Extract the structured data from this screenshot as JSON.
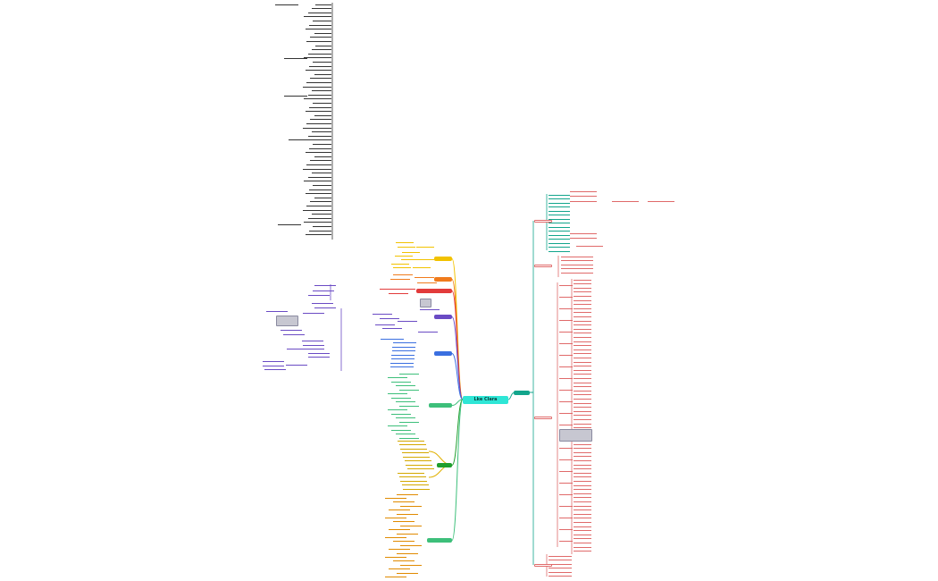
{
  "center_topic": "Lke Clara",
  "branches": [
    {
      "id": "teal",
      "label": "",
      "color": "#12a58c"
    },
    {
      "id": "yellow",
      "label": "",
      "color": "#f2c200"
    },
    {
      "id": "orange",
      "label": "",
      "color": "#f07b1c"
    },
    {
      "id": "red",
      "label": "",
      "color": "#e23b3b"
    },
    {
      "id": "purple",
      "label": "",
      "color": "#6a4bc4"
    },
    {
      "id": "blue",
      "label": "",
      "color": "#3a6fe0"
    },
    {
      "id": "lightgreen",
      "label": "",
      "color": "#6cc46a"
    },
    {
      "id": "green",
      "label": "",
      "color": "#1f9e2c"
    },
    {
      "id": "olive",
      "label": "",
      "color": "#e0b000"
    },
    {
      "id": "mint",
      "label": "",
      "color": "#3dbf7a"
    }
  ],
  "colors": {
    "teal": "#12a58c",
    "yellow": "#f2c200",
    "orange": "#f07b1c",
    "red": "#e23b3b",
    "purple": "#6a4bc4",
    "blue": "#3a6fe0",
    "green": "#1f9e2c",
    "mint": "#3dbf7a",
    "gray": "#8a8aa0",
    "pink": "#e06a6a",
    "center": "#2ee6d6"
  }
}
